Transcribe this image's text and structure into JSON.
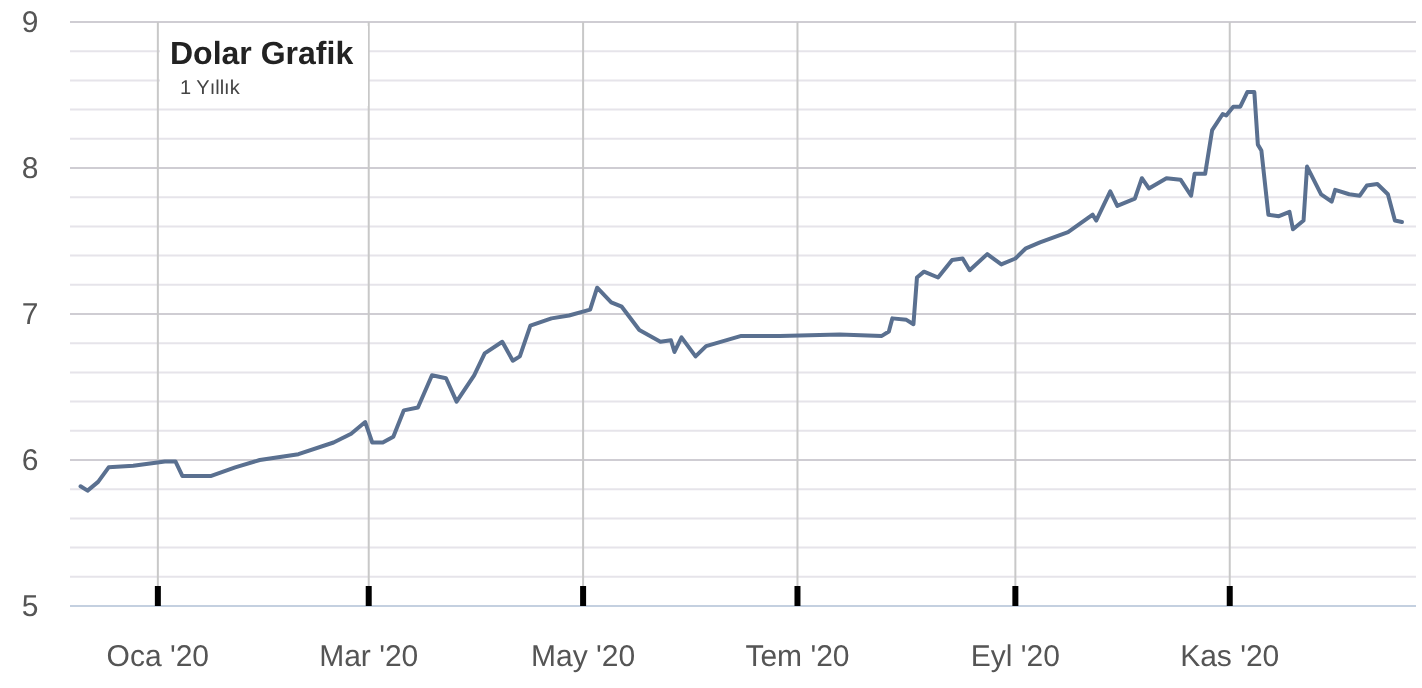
{
  "chart_data": {
    "type": "line",
    "title": "Dolar Grafik",
    "subtitle": "1 Yıllık",
    "xlim": [
      "2019-12-07",
      "2020-12-24"
    ],
    "xticks": [
      {
        "value": "2020-01-01",
        "label": "Oca '20"
      },
      {
        "value": "2020-03-01",
        "label": "Mar '20"
      },
      {
        "value": "2020-05-01",
        "label": "May '20"
      },
      {
        "value": "2020-07-01",
        "label": "Tem '20"
      },
      {
        "value": "2020-09-01",
        "label": "Eyl '20"
      },
      {
        "value": "2020-11-01",
        "label": "Kas '20"
      }
    ],
    "ylim": [
      5,
      9
    ],
    "yticks": [
      5,
      {
        "value": 5.2,
        "label": null
      },
      {
        "value": 5.4,
        "label": null
      },
      {
        "value": 5.6,
        "label": null
      },
      {
        "value": 5.8,
        "label": null
      },
      6,
      {
        "value": 6.2,
        "label": null
      },
      {
        "value": 6.4,
        "label": null
      },
      {
        "value": 6.6,
        "label": null
      },
      {
        "value": 6.8,
        "label": null
      },
      7,
      {
        "value": 7.2,
        "label": null
      },
      {
        "value": 7.4,
        "label": null
      },
      {
        "value": 7.6,
        "label": null
      },
      {
        "value": 7.8,
        "label": null
      },
      8,
      {
        "value": 8.2,
        "label": null
      },
      {
        "value": 8.4,
        "label": null
      },
      {
        "value": 8.6,
        "label": null
      },
      {
        "value": 8.8,
        "label": null
      },
      9
    ],
    "grid": true,
    "marker": "none",
    "line_style": "solid",
    "series": [
      {
        "color": "#5a7090",
        "x": [
          "2019-12-10",
          "2019-12-12",
          "2019-12-15",
          "2019-12-18",
          "2019-12-25",
          "2020-01-03",
          "2020-01-06",
          "2020-01-08",
          "2020-01-16",
          "2020-01-23",
          "2020-01-30",
          "2020-02-10",
          "2020-02-20",
          "2020-02-25",
          "2020-02-29",
          "2020-03-02",
          "2020-03-05",
          "2020-03-08",
          "2020-03-11",
          "2020-03-15",
          "2020-03-19",
          "2020-03-23",
          "2020-03-26",
          "2020-03-31",
          "2020-04-03",
          "2020-04-08",
          "2020-04-11",
          "2020-04-13",
          "2020-04-16",
          "2020-04-22",
          "2020-04-27",
          "2020-05-03",
          "2020-05-05",
          "2020-05-09",
          "2020-05-12",
          "2020-05-17",
          "2020-05-23",
          "2020-05-26",
          "2020-05-27",
          "2020-05-29",
          "2020-06-02",
          "2020-06-05",
          "2020-06-15",
          "2020-06-26",
          "2020-07-13",
          "2020-07-25",
          "2020-07-27",
          "2020-07-28",
          "2020-08-01",
          "2020-08-03",
          "2020-08-04",
          "2020-08-06",
          "2020-08-10",
          "2020-08-14",
          "2020-08-17",
          "2020-08-19",
          "2020-08-24",
          "2020-08-28",
          "2020-09-01",
          "2020-09-04",
          "2020-09-08",
          "2020-09-16",
          "2020-09-23",
          "2020-09-24",
          "2020-09-28",
          "2020-09-30",
          "2020-10-05",
          "2020-10-07",
          "2020-10-09",
          "2020-10-14",
          "2020-10-18",
          "2020-10-21",
          "2020-10-22",
          "2020-10-25",
          "2020-10-27",
          "2020-10-30",
          "2020-10-31",
          "2020-11-02",
          "2020-11-04",
          "2020-11-06",
          "2020-11-08",
          "2020-11-09",
          "2020-11-10",
          "2020-11-12",
          "2020-11-15",
          "2020-11-18",
          "2020-11-19",
          "2020-11-22",
          "2020-11-23",
          "2020-11-27",
          "2020-11-30",
          "2020-12-01",
          "2020-12-05",
          "2020-12-08",
          "2020-12-10",
          "2020-12-13",
          "2020-12-16",
          "2020-12-18",
          "2020-12-20"
        ],
        "values": [
          5.82,
          5.79,
          5.85,
          5.95,
          5.96,
          5.99,
          5.99,
          5.89,
          5.89,
          5.95,
          6.0,
          6.04,
          6.12,
          6.18,
          6.26,
          6.12,
          6.12,
          6.16,
          6.34,
          6.36,
          6.58,
          6.56,
          6.4,
          6.58,
          6.73,
          6.81,
          6.68,
          6.71,
          6.92,
          6.97,
          6.99,
          7.03,
          7.18,
          7.08,
          7.05,
          6.89,
          6.81,
          6.82,
          6.74,
          6.84,
          6.71,
          6.78,
          6.85,
          6.85,
          6.86,
          6.85,
          6.88,
          6.97,
          6.96,
          6.93,
          7.25,
          7.29,
          7.25,
          7.37,
          7.38,
          7.3,
          7.41,
          7.34,
          7.38,
          7.45,
          7.49,
          7.56,
          7.68,
          7.64,
          7.84,
          7.74,
          7.79,
          7.93,
          7.86,
          7.93,
          7.92,
          7.81,
          7.96,
          7.96,
          8.26,
          8.37,
          8.36,
          8.42,
          8.42,
          8.52,
          8.52,
          8.16,
          8.12,
          7.68,
          7.67,
          7.7,
          7.58,
          7.64,
          8.01,
          7.82,
          7.77,
          7.85,
          7.82,
          7.81,
          7.88,
          7.89,
          7.82,
          7.64,
          7.63
        ]
      }
    ]
  }
}
